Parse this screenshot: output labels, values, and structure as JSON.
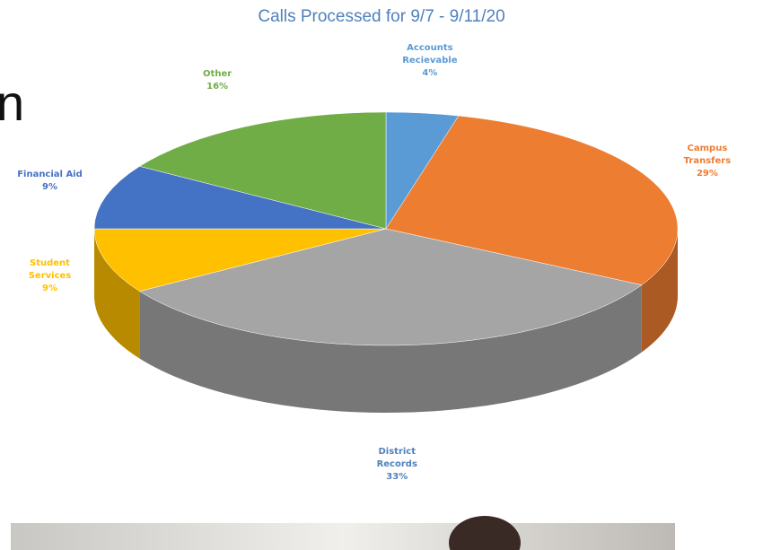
{
  "fragment_text": "n",
  "chart_data": {
    "type": "pie",
    "title": "Calls Processed for 9/7 - 9/11/20",
    "categories": [
      "Accounts Recievable",
      "Campus Transfers",
      "District Records",
      "Student Services",
      "Financial Aid",
      "Other"
    ],
    "values": [
      4,
      29,
      33,
      9,
      9,
      16
    ],
    "value_labels": [
      "4%",
      "29%",
      "33%",
      "9%",
      "9%",
      "16%"
    ],
    "colors": [
      "#5b9bd5",
      "#ed7d31",
      "#a5a5a5",
      "#ffc000",
      "#4472c4",
      "#70ad47"
    ]
  }
}
